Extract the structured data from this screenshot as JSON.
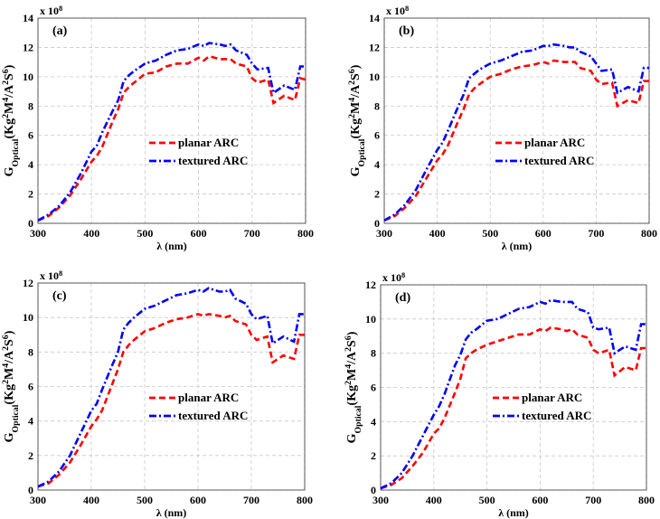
{
  "chart_data": [
    {
      "type": "line",
      "panel_label": "(a)",
      "exponent": "x 10^{8}",
      "xlabel": "λ (nm)",
      "ylabel": "G_{Optical}(Kg^{2}M^{4}/A^{2}S^{6})",
      "xlim": [
        300,
        800
      ],
      "ylim": [
        0,
        14
      ],
      "xticks": [
        300,
        400,
        500,
        600,
        700,
        800
      ],
      "yticks": [
        0,
        2,
        4,
        6,
        8,
        10,
        12,
        14
      ],
      "grid": true,
      "legend_position": "center",
      "x": [
        300,
        320,
        340,
        360,
        380,
        400,
        410,
        420,
        440,
        450,
        460,
        470,
        480,
        500,
        520,
        540,
        560,
        580,
        600,
        610,
        620,
        640,
        650,
        660,
        670,
        690,
        700,
        710,
        730,
        740,
        760,
        780,
        790,
        800
      ],
      "series": [
        {
          "name": "planar ARC",
          "color": "#ff0000",
          "style": "dashed",
          "values": [
            0.2,
            0.5,
            1.1,
            1.9,
            3.0,
            4.2,
            4.6,
            5.2,
            7.0,
            7.8,
            8.9,
            9.3,
            9.6,
            10.2,
            10.3,
            10.7,
            10.9,
            10.9,
            11.3,
            11.1,
            11.4,
            11.2,
            11.2,
            11.2,
            10.9,
            10.7,
            9.9,
            9.6,
            9.8,
            8.2,
            8.7,
            8.4,
            9.9,
            9.8
          ]
        },
        {
          "name": " textured ARC",
          "color": "#0000ff",
          "style": "dashdot",
          "values": [
            0.2,
            0.6,
            1.2,
            2.1,
            3.4,
            4.9,
            5.3,
            6.2,
            7.7,
            8.4,
            9.7,
            10.1,
            10.4,
            10.9,
            11.1,
            11.5,
            11.8,
            11.9,
            12.2,
            12.1,
            12.3,
            12.2,
            12.1,
            12.2,
            11.8,
            11.5,
            10.9,
            10.5,
            10.6,
            8.9,
            9.4,
            9.1,
            10.7,
            10.7
          ]
        }
      ]
    },
    {
      "type": "line",
      "panel_label": "(b)",
      "exponent": "x 10^{8}",
      "xlabel": "λ (nm)",
      "ylabel": "G_{Optical}(Kg^{2}M^{4}/A^{2}S^{6})",
      "xlim": [
        300,
        800
      ],
      "ylim": [
        0,
        14
      ],
      "xticks": [
        300,
        400,
        500,
        600,
        700,
        800
      ],
      "yticks": [
        0,
        2,
        4,
        6,
        8,
        10,
        12,
        14
      ],
      "grid": true,
      "legend_position": "center-right",
      "x": [
        300,
        320,
        340,
        360,
        380,
        400,
        410,
        420,
        440,
        450,
        460,
        470,
        480,
        500,
        520,
        540,
        560,
        580,
        600,
        610,
        620,
        640,
        650,
        660,
        670,
        690,
        700,
        710,
        730,
        740,
        760,
        780,
        790,
        800
      ],
      "series": [
        {
          "name": "planar ARC",
          "color": "#ff0000",
          "style": "dashed",
          "values": [
            0.2,
            0.5,
            1.1,
            1.9,
            3.1,
            4.3,
            4.7,
            5.3,
            7.0,
            7.8,
            8.8,
            9.2,
            9.5,
            10.0,
            10.2,
            10.5,
            10.7,
            10.8,
            11.0,
            10.9,
            11.1,
            11.0,
            11.0,
            11.0,
            10.6,
            10.4,
            9.8,
            9.5,
            9.6,
            8.0,
            8.4,
            8.2,
            9.7,
            9.7
          ]
        },
        {
          "name": " textured ARC",
          "color": "#0000ff",
          "style": "dashdot",
          "values": [
            0.2,
            0.6,
            1.3,
            2.3,
            3.7,
            5.0,
            5.5,
            6.3,
            8.0,
            8.8,
            9.9,
            10.2,
            10.5,
            10.9,
            11.1,
            11.4,
            11.7,
            11.8,
            12.1,
            12.1,
            12.2,
            12.1,
            12.0,
            12.0,
            11.7,
            11.4,
            10.9,
            10.4,
            10.5,
            8.9,
            9.3,
            9.0,
            10.6,
            10.6
          ]
        }
      ]
    },
    {
      "type": "line",
      "panel_label": "(c)",
      "exponent": "x 10^{8}",
      "xlabel": "λ (nm)",
      "ylabel": "G_{Optical}(Kg^{2}M^{4}/A^{2}S^{6})",
      "xlim": [
        300,
        800
      ],
      "ylim": [
        0,
        12
      ],
      "xticks": [
        300,
        400,
        500,
        600,
        700,
        800
      ],
      "yticks": [
        0,
        2,
        4,
        6,
        8,
        10,
        12
      ],
      "grid": true,
      "legend_position": "center",
      "x": [
        300,
        320,
        340,
        360,
        380,
        400,
        410,
        420,
        440,
        450,
        460,
        470,
        480,
        500,
        520,
        540,
        560,
        580,
        600,
        610,
        620,
        640,
        650,
        660,
        670,
        690,
        700,
        710,
        730,
        740,
        760,
        780,
        790,
        800
      ],
      "series": [
        {
          "name": "planar ARC",
          "color": "#ff0000",
          "style": "dashed",
          "values": [
            0.2,
            0.4,
            0.9,
            1.6,
            2.6,
            3.7,
            4.1,
            4.6,
            6.2,
            7.0,
            8.0,
            8.4,
            8.7,
            9.2,
            9.4,
            9.7,
            9.9,
            10.0,
            10.2,
            10.1,
            10.2,
            10.1,
            10.0,
            10.1,
            9.8,
            9.6,
            9.0,
            8.7,
            8.9,
            7.4,
            7.8,
            7.6,
            9.0,
            9.0
          ]
        },
        {
          "name": " textured ARC",
          "color": "#0000ff",
          "style": "dashdot",
          "values": [
            0.2,
            0.5,
            1.1,
            2.0,
            3.3,
            4.6,
            5.0,
            5.8,
            7.3,
            8.0,
            9.3,
            9.7,
            10.0,
            10.5,
            10.7,
            11.0,
            11.3,
            11.4,
            11.6,
            11.5,
            11.7,
            11.5,
            11.5,
            11.6,
            11.1,
            10.8,
            10.2,
            9.9,
            10.1,
            8.5,
            8.9,
            8.6,
            10.2,
            10.2
          ]
        }
      ]
    },
    {
      "type": "line",
      "panel_label": "(d)",
      "exponent": "x 10^{8}",
      "xlabel": "λ (nm)",
      "ylabel": "G_{Optical}(Kg^{2}M^{4}/A^{2}S^{6})",
      "xlim": [
        300,
        800
      ],
      "ylim": [
        0,
        12
      ],
      "xticks": [
        300,
        400,
        500,
        600,
        700,
        800
      ],
      "yticks": [
        0,
        2,
        4,
        6,
        8,
        10,
        12
      ],
      "grid": true,
      "legend_position": "center-right",
      "x": [
        300,
        320,
        340,
        360,
        380,
        400,
        410,
        420,
        440,
        450,
        460,
        470,
        480,
        500,
        520,
        540,
        560,
        580,
        600,
        610,
        620,
        640,
        650,
        660,
        670,
        690,
        700,
        710,
        730,
        740,
        760,
        780,
        790,
        800
      ],
      "series": [
        {
          "name": "planar ARC",
          "color": "#ff0000",
          "style": "dashed",
          "values": [
            0.1,
            0.3,
            0.7,
            1.4,
            2.2,
            3.3,
            3.6,
            4.2,
            5.7,
            6.5,
            7.7,
            8.0,
            8.2,
            8.5,
            8.7,
            8.9,
            9.1,
            9.1,
            9.4,
            9.3,
            9.5,
            9.4,
            9.3,
            9.4,
            9.1,
            8.9,
            8.2,
            8.0,
            8.2,
            6.7,
            7.2,
            7.0,
            8.3,
            8.3
          ]
        },
        {
          "name": " textured ARC",
          "color": "#0000ff",
          "style": "dashdot",
          "values": [
            0.1,
            0.4,
            1.0,
            2.0,
            3.2,
            4.4,
            4.9,
            5.6,
            7.3,
            7.9,
            8.8,
            9.2,
            9.4,
            9.9,
            10.0,
            10.3,
            10.6,
            10.7,
            11.0,
            10.9,
            11.1,
            11.0,
            11.0,
            11.0,
            10.6,
            10.4,
            9.5,
            9.4,
            9.5,
            8.0,
            8.4,
            8.2,
            9.7,
            9.7
          ]
        }
      ]
    }
  ]
}
